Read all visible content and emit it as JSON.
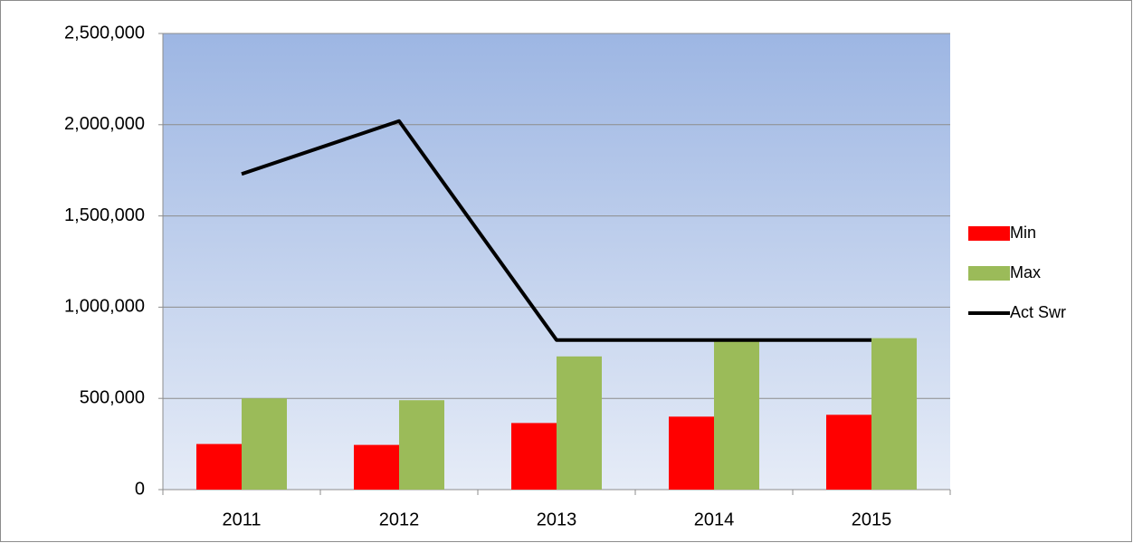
{
  "chart_data": {
    "type": "bar",
    "categories": [
      "2011",
      "2012",
      "2013",
      "2014",
      "2015"
    ],
    "series": [
      {
        "name": "Min",
        "color": "#ff0000",
        "type": "bar",
        "values": [
          250000,
          245000,
          365000,
          400000,
          410000
        ]
      },
      {
        "name": "Max",
        "color": "#9bbb59",
        "type": "bar",
        "values": [
          500000,
          490000,
          730000,
          820000,
          830000
        ]
      },
      {
        "name": "Act Swr",
        "color": "#000000",
        "type": "line",
        "values": [
          1730000,
          2020000,
          820000,
          820000,
          820000
        ]
      }
    ],
    "ylim": [
      0,
      2500000
    ],
    "yticks": [
      0,
      {
        "value": 500000,
        "label": "500,000"
      },
      {
        "value": 1000000,
        "label": "1,000,000"
      },
      {
        "value": 1500000,
        "label": "1,500,000"
      },
      {
        "value": 2000000,
        "label": "2,000,000"
      },
      {
        "value": 2500000,
        "label": "2,500,000"
      }
    ],
    "grid": true,
    "legend": "right"
  }
}
